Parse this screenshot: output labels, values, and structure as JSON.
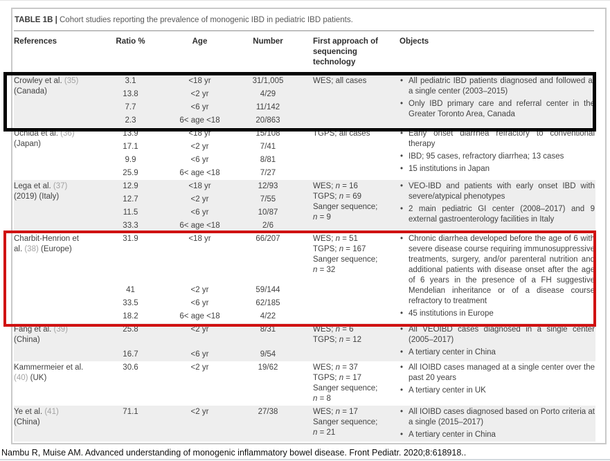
{
  "window": {
    "citation": "Nambu R, Muise AM. Advanced understanding of monogenic inflammatory bowel disease. Front Pediatr. 2020;8:618918.."
  },
  "table": {
    "label": "TABLE 1B |",
    "caption": "Cohort studies reporting the prevalence of monogenic IBD in pediatric IBD patients.",
    "columns": [
      "References",
      "Ratio %",
      "Age",
      "Number",
      "First approach of sequencing technology",
      "Objects"
    ],
    "row_shading": "#eeeeee",
    "highlights": {
      "black_box": "#060606",
      "red_box": "#d01212"
    },
    "rows": [
      {
        "ref_pre": "Crowley et al. ",
        "ref_num": "(35)",
        "ref_post": " (Canada)",
        "ratios": [
          "3.1",
          "13.8",
          "7.7",
          "2.3"
        ],
        "ages": [
          "<18 yr",
          "<2 yr",
          "<6 yr",
          "6< age <18"
        ],
        "numbers": [
          "31/1,005",
          "4/29",
          "11/142",
          "20/863"
        ],
        "approach": [
          "WES; all cases"
        ],
        "objects": [
          "All pediatric IBD patients diagnosed and followed at a single center (2003–2015)",
          "Only IBD primary care and referral center in the Greater Toronto Area, Canada"
        ],
        "shaded": true,
        "highlight": "black_box"
      },
      {
        "ref_pre": "Uchida et al. ",
        "ref_num": "(36)",
        "ref_post": " (Japan)",
        "ratios": [
          "13.9",
          "17.1",
          "9.9",
          "25.9"
        ],
        "ages": [
          "<18 yr",
          "<2 yr",
          "<6 yr",
          "6< age <18"
        ],
        "numbers": [
          "15/108",
          "7/41",
          "8/81",
          "7/27"
        ],
        "approach": [
          "TGPS; all cases"
        ],
        "objects": [
          "Early onset diarrhea refractory to conventional therapy",
          "IBD; 95 cases, refractory diarrhea; 13 cases",
          "15 institutions in Japan"
        ],
        "shaded": false,
        "highlight": null
      },
      {
        "ref_pre": "Lega et al. ",
        "ref_num": "(37)",
        "ref_post": " (2019) (Italy)",
        "ratios": [
          "12.9",
          "12.7",
          "11.5",
          "33.3"
        ],
        "ages": [
          "<18 yr",
          "<2 yr",
          "<6 yr",
          "6< age <18"
        ],
        "numbers": [
          "12/93",
          "7/55",
          "10/87",
          "2/6"
        ],
        "approach": [
          "WES; n = 16",
          "TGPS; n = 69",
          "Sanger sequence;",
          "n = 9"
        ],
        "objects": [
          "VEO-IBD and patients with early onset IBD with severe/atypical phenotypes",
          "2 main pediatric GI center (2008–2017) and 9 external gastroenterology facilities in Italy"
        ],
        "shaded": true,
        "highlight": null
      },
      {
        "ref_pre": "Charbit-Henrion et al. ",
        "ref_num": "(38)",
        "ref_post": " (Europe)",
        "ratios": [
          "31.9",
          "41",
          "33.5",
          "18.2"
        ],
        "ages": [
          "<18 yr",
          "<2 yr",
          "<6 yr",
          "6< age <18"
        ],
        "numbers": [
          "66/207",
          "59/144",
          "62/185",
          "4/22"
        ],
        "approach": [
          "WES; n = 51",
          "TGPS; n = 167",
          "Sanger sequence;",
          "n = 32"
        ],
        "objects": [
          "Chronic diarrhea developed before the age of 6 with severe disease course requiring immunosuppressive treatments, surgery, and/or parenteral nutrition and additional patients with disease onset after the age of 6 years in the presence of a FH suggestive Mendelian inheritance or of a disease course refractory to treatment",
          "45 institutions in Europe"
        ],
        "shaded": false,
        "highlight": "red_box"
      },
      {
        "ref_pre": "Fang et al. ",
        "ref_num": "(39)",
        "ref_post": " (China)",
        "ratios": [
          "25.8",
          "16.7"
        ],
        "ages": [
          "<2 yr",
          "<6 yr"
        ],
        "numbers": [
          "8/31",
          "9/54"
        ],
        "approach": [
          "WES; n = 6",
          "TGPS; n = 12"
        ],
        "objects": [
          "All VEOIBD cases diagnosed in a single center (2005–2017)",
          "A tertiary center in China"
        ],
        "shaded": true,
        "highlight": null
      },
      {
        "ref_pre": "Kammermeier et al. ",
        "ref_num": "(40)",
        "ref_post": " (UK)",
        "ratios": [
          "30.6"
        ],
        "ages": [
          "<2 yr"
        ],
        "numbers": [
          "19/62"
        ],
        "approach": [
          "WES; n = 37",
          "TGPS; n = 17",
          "Sanger sequence;",
          "n = 8"
        ],
        "objects": [
          "All IOIBD cases managed at a single center over the past 20 years",
          "A tertiary center in UK"
        ],
        "shaded": false,
        "highlight": null
      },
      {
        "ref_pre": "Ye et al. ",
        "ref_num": "(41)",
        "ref_post": " (China)",
        "ratios": [
          "71.1"
        ],
        "ages": [
          "<2 yr"
        ],
        "numbers": [
          "27/38"
        ],
        "approach": [
          "WES; n = 17",
          "Sanger sequence;",
          "n = 21"
        ],
        "objects": [
          "All IOIBD cases diagnosed based on Porto criteria at a single (2015–2017)",
          "A tertiary center in China"
        ],
        "shaded": true,
        "highlight": null
      }
    ]
  }
}
